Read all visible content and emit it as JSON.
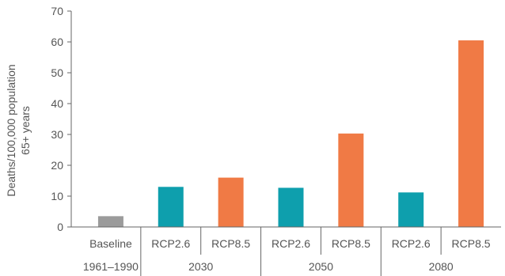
{
  "chart_data": {
    "type": "bar",
    "ylabel_lines": [
      "Deaths/100,000 population",
      "65+ years"
    ],
    "ylim": [
      0,
      70
    ],
    "yticks": [
      0,
      10,
      20,
      30,
      40,
      50,
      60,
      70
    ],
    "grid": false,
    "legend": "none",
    "categories": [
      "Baseline",
      "RCP2.6",
      "RCP8.5",
      "RCP2.6",
      "RCP8.5",
      "RCP2.6",
      "RCP8.5"
    ],
    "group_labels": [
      "1961–1990",
      "2030",
      "2050",
      "2080"
    ],
    "values": [
      3.5,
      13,
      16,
      12.7,
      30.3,
      11.2,
      60.5
    ],
    "bar_colors": [
      "#9b9b9b",
      "#0e9fad",
      "#f07a45",
      "#0e9fad",
      "#f07a45",
      "#0e9fad",
      "#f07a45"
    ]
  }
}
